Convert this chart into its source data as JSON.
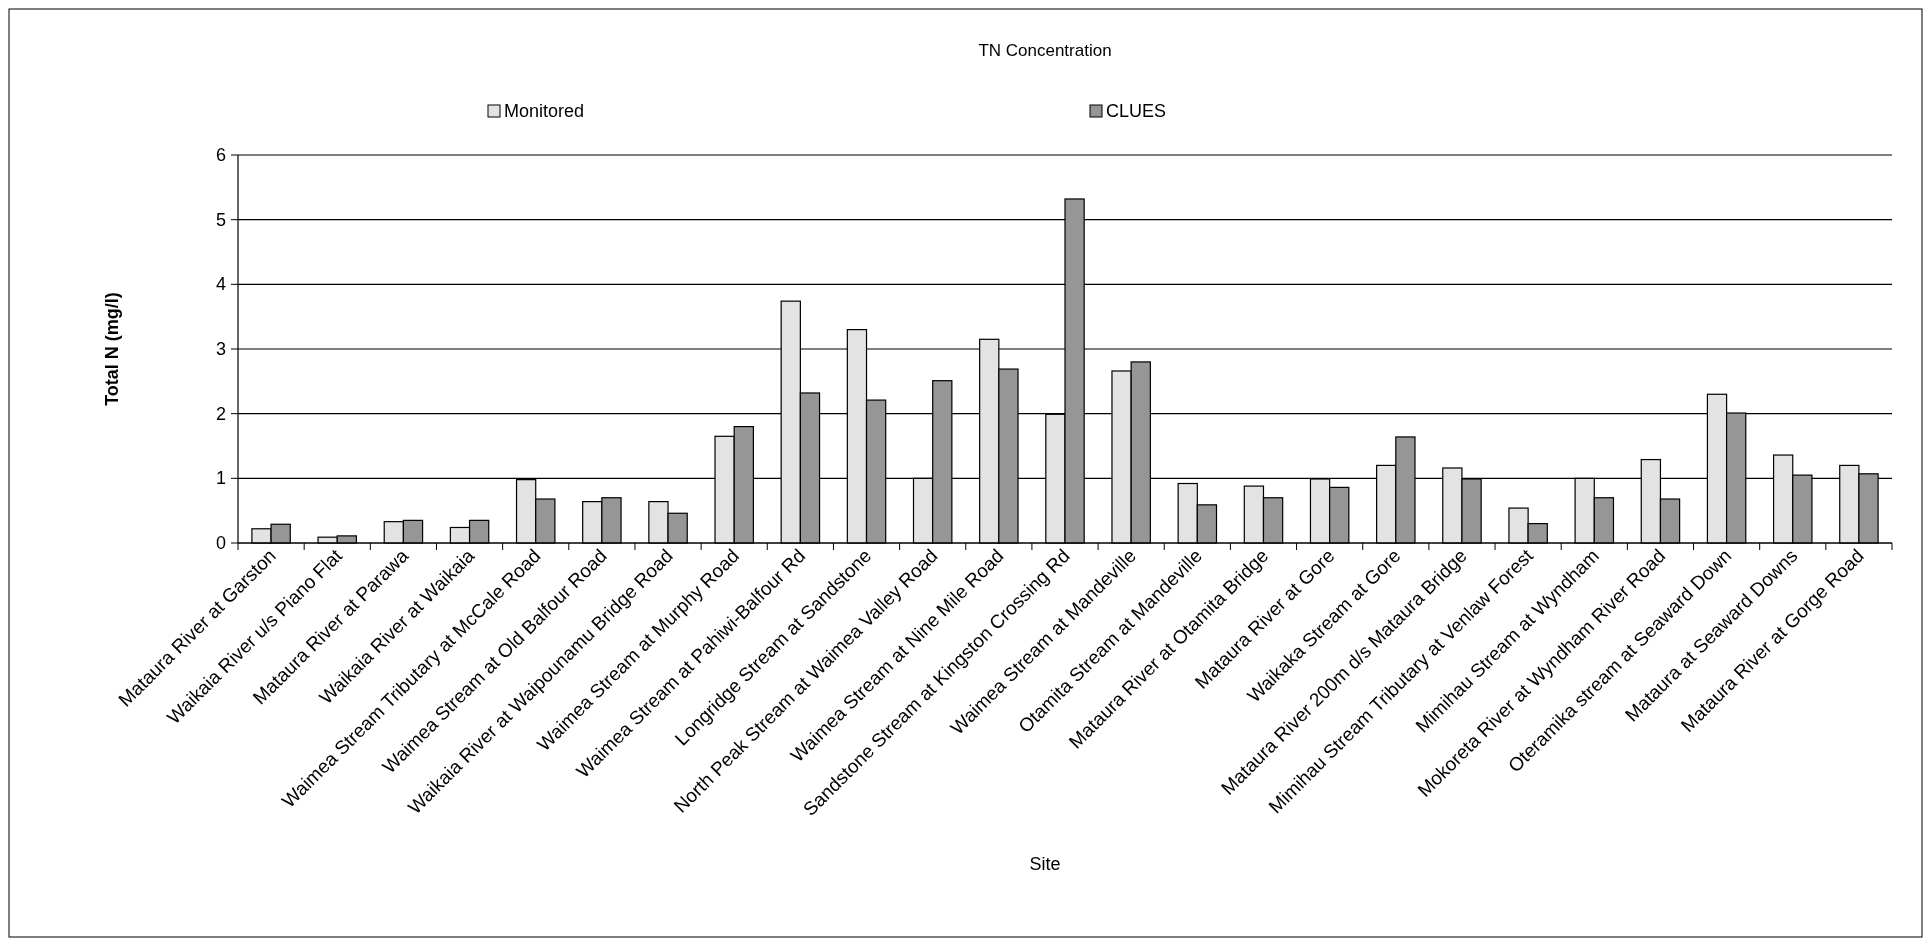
{
  "chart_data": {
    "type": "bar",
    "title": "TN Concentration",
    "xlabel": "Site",
    "ylabel": "Total N (mg/l)",
    "categories": [
      "Mataura River at Garston",
      "Waikaia River u/s Piano Flat",
      "Mataura River at Parawa",
      "Waikaia River at Waikaia",
      "Waimea Stream Tributary at McCale Road",
      "Waimea Stream at Old Balfour Road",
      "Waikaia River at Waipounamu Bridge Road",
      "Waimea Stream at Murphy Road",
      "Waimea Stream at Pahiwi-Balfour Rd",
      "Longridge Stream at Sandstone",
      "North Peak Stream at Waimea Valley Road",
      "Waimea Stream at Nine Mile Road",
      "Sandstone Stream at Kingston Crossing Rd",
      "Waimea Stream at Mandeville",
      "Otamita Stream at Mandeville",
      "Mataura River at Otamita Bridge",
      "Mataura River at Gore",
      "Waikaka Stream at Gore",
      "Mataura River 200m d/s Mataura Bridge",
      "Mimihau Stream Tributary at Venlaw Forest",
      "Mimihau Stream at Wyndham",
      "Mokoreta River at Wyndham River Road",
      "Oteramika stream at Seaward Down",
      "Mataura at Seaward Downs",
      "Mataura River at Gorge Road"
    ],
    "series": [
      {
        "name": "Monitored",
        "color": "#e3e3e3",
        "values": [
          0.22,
          0.09,
          0.33,
          0.24,
          0.98,
          0.64,
          0.64,
          1.65,
          3.74,
          3.3,
          1.0,
          3.15,
          1.99,
          2.66,
          0.92,
          0.88,
          0.99,
          1.2,
          1.16,
          0.54,
          1.0,
          1.29,
          2.3,
          1.36,
          1.2
        ]
      },
      {
        "name": "CLUES",
        "color": "#969696",
        "values": [
          0.29,
          0.11,
          0.35,
          0.35,
          0.68,
          0.7,
          0.46,
          1.8,
          2.32,
          2.21,
          2.51,
          2.69,
          5.32,
          2.8,
          0.59,
          0.7,
          0.86,
          1.64,
          0.99,
          0.3,
          0.7,
          0.68,
          2.01,
          1.05,
          1.07
        ]
      }
    ],
    "ylim": [
      0,
      6
    ],
    "yticks": [
      0,
      1,
      2,
      3,
      4,
      5,
      6
    ],
    "grid": "y",
    "legend": "top"
  }
}
